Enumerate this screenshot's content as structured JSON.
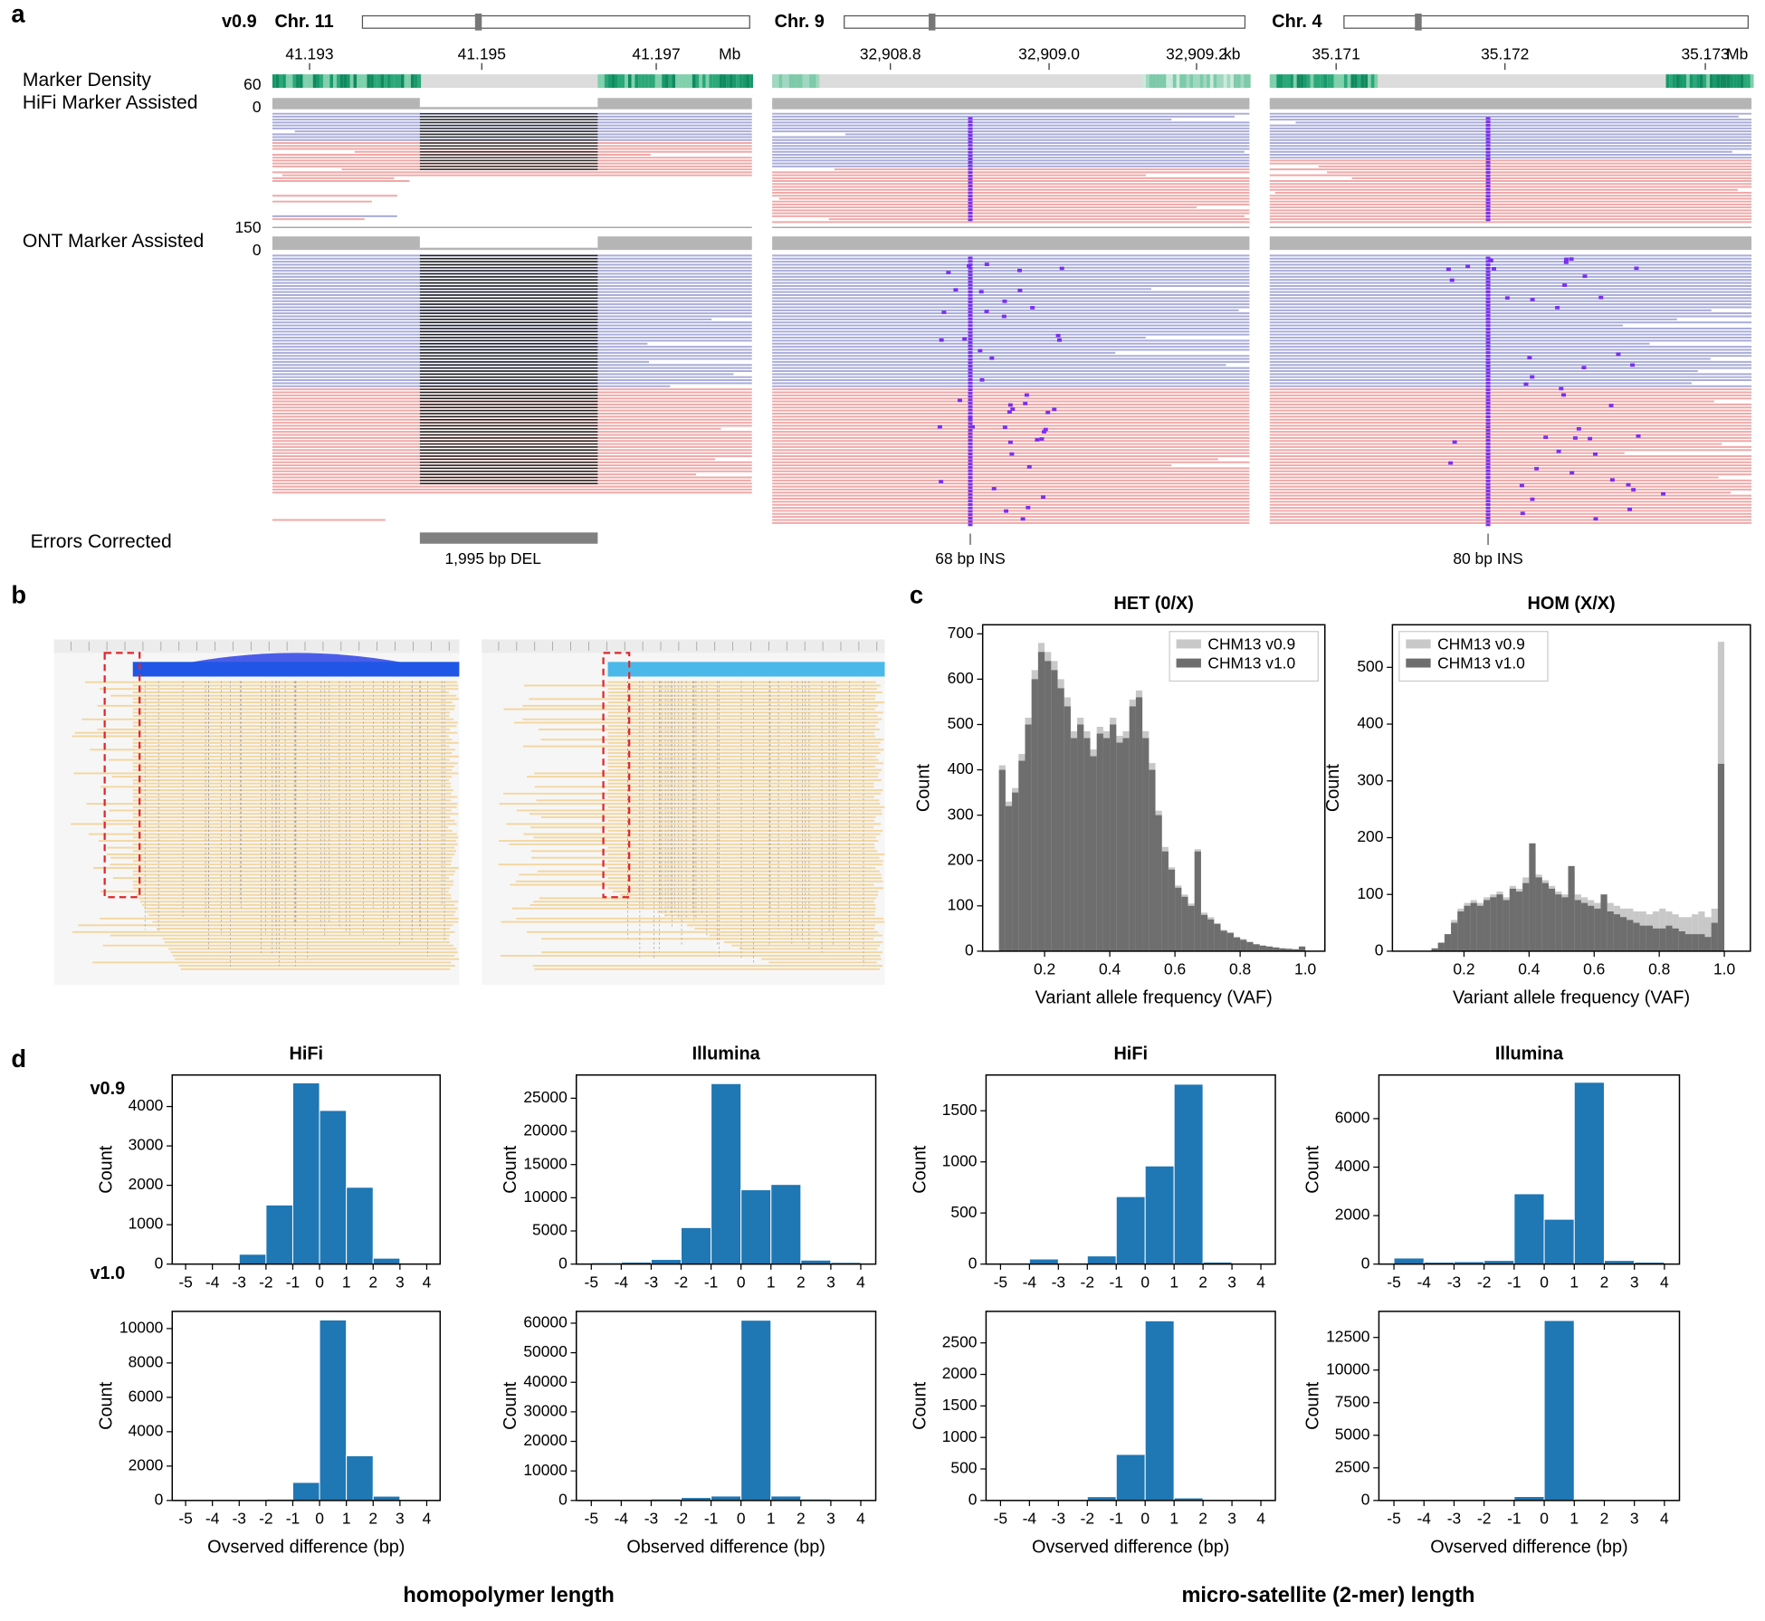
{
  "panel_labels": [
    "a",
    "b",
    "c",
    "d"
  ],
  "panel_a": {
    "version": "v0.9",
    "tracks": [
      "Marker Density",
      "HiFi Marker Assisted",
      "ONT Marker Assisted",
      "Errors Corrected"
    ],
    "hifi_scale": [
      "60",
      "0"
    ],
    "ont_scale": [
      "150",
      "0"
    ],
    "regions": [
      {
        "chromosome": "Chr. 11",
        "ticks": [
          "41.193",
          "41.195",
          "41.197"
        ],
        "unit": "Mb",
        "event": "1,995 bp DEL"
      },
      {
        "chromosome": "Chr. 9",
        "ticks": [
          "32,908.8",
          "32,909.0",
          "32,909.2"
        ],
        "unit": "kb",
        "event": "68 bp INS"
      },
      {
        "chromosome": "Chr. 4",
        "ticks": [
          "35.171",
          "35.172",
          "35.173"
        ],
        "unit": "Mb",
        "event": "80 bp INS"
      }
    ]
  },
  "panel_d": {
    "rows": [
      "v0.9",
      "v1.0"
    ],
    "groups": [
      "homopolymer length",
      "micro-satellite (2-mer) length"
    ]
  },
  "chart_data": [
    {
      "type": "histogram",
      "title": "HET (0/X)",
      "x_label": "Variant allele frequency (VAF)",
      "y_label": "Count",
      "bins": [
        0.06,
        0.08,
        0.1,
        0.12,
        0.14,
        0.16,
        0.18,
        0.2,
        0.22,
        0.24,
        0.26,
        0.28,
        0.3,
        0.32,
        0.34,
        0.36,
        0.38,
        0.4,
        0.42,
        0.44,
        0.46,
        0.48,
        0.5,
        0.52,
        0.54,
        0.56,
        0.58,
        0.6,
        0.62,
        0.64,
        0.66,
        0.68,
        0.7,
        0.72,
        0.74,
        0.76,
        0.78,
        0.8,
        0.82,
        0.84,
        0.86,
        0.88,
        0.9,
        0.92,
        0.94,
        0.96,
        0.98,
        1.0
      ],
      "series": [
        {
          "name": "CHM13 v0.9",
          "color": "#c8c8c8",
          "values": [
            410,
            330,
            360,
            435,
            515,
            620,
            680,
            660,
            640,
            600,
            560,
            485,
            515,
            485,
            445,
            495,
            485,
            515,
            475,
            485,
            555,
            575,
            485,
            415,
            310,
            230,
            185,
            145,
            125,
            105,
            225,
            85,
            75,
            62,
            47,
            42,
            32,
            27,
            21,
            16,
            13,
            11,
            9,
            7,
            6,
            5,
            11
          ]
        },
        {
          "name": "CHM13 v1.0",
          "color": "#6e6e6e",
          "values": [
            400,
            320,
            350,
            420,
            500,
            600,
            660,
            640,
            620,
            580,
            540,
            470,
            500,
            470,
            430,
            480,
            470,
            500,
            460,
            470,
            540,
            560,
            470,
            400,
            300,
            220,
            180,
            140,
            120,
            100,
            220,
            80,
            70,
            60,
            45,
            40,
            30,
            25,
            20,
            15,
            12,
            10,
            8,
            6,
            5,
            4,
            10
          ]
        }
      ],
      "xlim": [
        0.01,
        1.06
      ],
      "xticks": [
        0.2,
        0.4,
        0.6,
        0.8,
        {
          "value": 1,
          "label": "1.0"
        }
      ],
      "ylim": [
        0,
        720
      ],
      "yticks": [
        0,
        100,
        200,
        300,
        400,
        500,
        600,
        700
      ],
      "legend": "upper right"
    },
    {
      "type": "histogram",
      "title": "HOM (X/X)",
      "x_label": "Variant allele frequency (VAF)",
      "y_label": "Count",
      "bins": [
        0.06,
        0.08,
        0.1,
        0.12,
        0.14,
        0.16,
        0.18,
        0.2,
        0.22,
        0.24,
        0.26,
        0.28,
        0.3,
        0.32,
        0.34,
        0.36,
        0.38,
        0.4,
        0.42,
        0.44,
        0.46,
        0.48,
        0.5,
        0.52,
        0.54,
        0.56,
        0.58,
        0.6,
        0.62,
        0.64,
        0.66,
        0.68,
        0.7,
        0.72,
        0.74,
        0.76,
        0.78,
        0.8,
        0.82,
        0.84,
        0.86,
        0.88,
        0.9,
        0.92,
        0.94,
        0.96,
        0.98,
        1.0
      ],
      "series": [
        {
          "name": "CHM13 v0.9",
          "color": "#c8c8c8",
          "values": [
            0,
            0,
            5,
            15,
            30,
            55,
            75,
            85,
            90,
            85,
            95,
            100,
            105,
            95,
            115,
            110,
            130,
            175,
            135,
            125,
            115,
            105,
            100,
            140,
            100,
            95,
            90,
            85,
            95,
            85,
            80,
            75,
            75,
            70,
            70,
            65,
            70,
            75,
            70,
            65,
            60,
            60,
            65,
            70,
            60,
            75,
            545
          ]
        },
        {
          "name": "CHM13 v1.0",
          "color": "#6e6e6e",
          "values": [
            0,
            0,
            5,
            15,
            30,
            50,
            70,
            80,
            85,
            80,
            90,
            95,
            100,
            90,
            110,
            105,
            120,
            190,
            130,
            120,
            110,
            100,
            95,
            150,
            90,
            85,
            80,
            75,
            100,
            70,
            65,
            60,
            55,
            50,
            45,
            45,
            40,
            40,
            45,
            40,
            35,
            30,
            30,
            30,
            25,
            50,
            330
          ]
        }
      ],
      "xlim": [
        -0.02,
        1.08
      ],
      "xticks": [
        0.2,
        0.4,
        0.6,
        0.8,
        {
          "value": 1,
          "label": "1.0"
        }
      ],
      "ylim": [
        0,
        575
      ],
      "yticks": [
        0,
        100,
        200,
        300,
        400,
        500
      ],
      "legend": "upper left"
    },
    {
      "type": "histogram",
      "title": "HiFi",
      "y_label": "Count",
      "color": "#1f77b4",
      "bins": [
        -5,
        -4,
        -3,
        -2,
        -1,
        0,
        1,
        2,
        3,
        4
      ],
      "values": [
        5,
        20,
        250,
        1500,
        4600,
        3900,
        1950,
        150,
        10
      ],
      "xlim": [
        -5.5,
        4.5
      ],
      "xticks": [
        -5,
        -4,
        -3,
        -2,
        -1,
        0,
        1,
        2,
        3,
        4
      ],
      "ylim": [
        0,
        4800
      ],
      "yticks": [
        0,
        1000,
        2000,
        3000,
        4000
      ]
    },
    {
      "type": "histogram",
      "x_label": "Ovserved difference (bp)",
      "y_label": "Count",
      "color": "#1f77b4",
      "bins": [
        -5,
        -4,
        -3,
        -2,
        -1,
        0,
        1,
        2,
        3,
        4
      ],
      "values": [
        0,
        0,
        20,
        80,
        1050,
        10500,
        2600,
        250,
        10
      ],
      "xlim": [
        -5.5,
        4.5
      ],
      "xticks": [
        -5,
        -4,
        -3,
        -2,
        -1,
        0,
        1,
        2,
        3,
        4
      ],
      "ylim": [
        0,
        11000
      ],
      "yticks": [
        0,
        2000,
        4000,
        6000,
        8000,
        10000
      ]
    },
    {
      "type": "histogram",
      "title": "Illumina",
      "y_label": "Count",
      "color": "#1f77b4",
      "bins": [
        -5,
        -4,
        -3,
        -2,
        -1,
        0,
        1,
        2,
        3,
        4
      ],
      "values": [
        200,
        300,
        700,
        5500,
        27200,
        11200,
        12000,
        600,
        250
      ],
      "xlim": [
        -5.5,
        4.5
      ],
      "xticks": [
        -5,
        -4,
        -3,
        -2,
        -1,
        0,
        1,
        2,
        3,
        4
      ],
      "ylim": [
        0,
        28500
      ],
      "yticks": [
        0,
        5000,
        10000,
        15000,
        20000,
        25000
      ]
    },
    {
      "type": "histogram",
      "x_label": "Observed difference (bp)",
      "y_label": "Count",
      "color": "#1f77b4",
      "bins": [
        -5,
        -4,
        -3,
        -2,
        -1,
        0,
        1,
        2,
        3,
        4
      ],
      "values": [
        100,
        200,
        500,
        1000,
        1500,
        61000,
        1500,
        500,
        300
      ],
      "xlim": [
        -5.5,
        4.5
      ],
      "xticks": [
        -5,
        -4,
        -3,
        -2,
        -1,
        0,
        1,
        2,
        3,
        4
      ],
      "ylim": [
        0,
        64000
      ],
      "yticks": [
        0,
        10000,
        20000,
        30000,
        40000,
        50000,
        60000
      ]
    },
    {
      "type": "histogram",
      "title": "HiFi",
      "y_label": "Count",
      "color": "#1f77b4",
      "bins": [
        -5,
        -4,
        -3,
        -2,
        -1,
        0,
        1,
        2,
        3,
        4
      ],
      "values": [
        0,
        50,
        10,
        80,
        660,
        960,
        1760,
        20,
        5
      ],
      "xlim": [
        -5.5,
        4.5
      ],
      "xticks": [
        -5,
        -4,
        -3,
        -2,
        -1,
        0,
        1,
        2,
        3,
        4
      ],
      "ylim": [
        0,
        1850
      ],
      "yticks": [
        0,
        500,
        1000,
        1500
      ]
    },
    {
      "type": "histogram",
      "x_label": "Ovserved difference (bp)",
      "y_label": "Count",
      "color": "#1f77b4",
      "bins": [
        -5,
        -4,
        -3,
        -2,
        -1,
        0,
        1,
        2,
        3,
        4
      ],
      "values": [
        0,
        10,
        10,
        60,
        730,
        2850,
        40,
        5,
        0
      ],
      "xlim": [
        -5.5,
        4.5
      ],
      "xticks": [
        -5,
        -4,
        -3,
        -2,
        -1,
        0,
        1,
        2,
        3,
        4
      ],
      "ylim": [
        0,
        3000
      ],
      "yticks": [
        0,
        500,
        1000,
        1500,
        2000,
        2500
      ]
    },
    {
      "type": "histogram",
      "title": "Illumina",
      "y_label": "Count",
      "color": "#1f77b4",
      "bins": [
        -5,
        -4,
        -3,
        -2,
        -1,
        0,
        1,
        2,
        3,
        4
      ],
      "values": [
        250,
        80,
        100,
        150,
        2900,
        1850,
        7500,
        150,
        80
      ],
      "xlim": [
        -5.5,
        4.5
      ],
      "xticks": [
        -5,
        -4,
        -3,
        -2,
        -1,
        0,
        1,
        2,
        3,
        4
      ],
      "ylim": [
        0,
        7800
      ],
      "yticks": [
        0,
        2000,
        4000,
        6000
      ]
    },
    {
      "type": "histogram",
      "x_label": "Ovserved difference (bp)",
      "y_label": "Count",
      "color": "#1f77b4",
      "bins": [
        -5,
        -4,
        -3,
        -2,
        -1,
        0,
        1,
        2,
        3,
        4
      ],
      "values": [
        0,
        0,
        50,
        50,
        300,
        13800,
        100,
        50,
        0
      ],
      "xlim": [
        -5.5,
        4.5
      ],
      "xticks": [
        -5,
        -4,
        -3,
        -2,
        -1,
        0,
        1,
        2,
        3,
        4
      ],
      "ylim": [
        0,
        14500
      ],
      "yticks": [
        0,
        2500,
        5000,
        7500,
        10000,
        12500
      ]
    }
  ]
}
